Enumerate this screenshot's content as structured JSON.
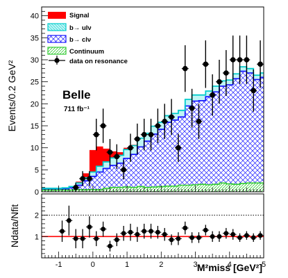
{
  "chart_data": [
    {
      "type": "histogram",
      "panel": "main",
      "ylabel": "Events/0.2 GeV²",
      "xlim": [
        -1.5,
        5
      ],
      "ylim": [
        0,
        42
      ],
      "x_ticks": [
        "-1",
        "0",
        "1",
        "2",
        "3",
        "4",
        "5"
      ],
      "y_ticks": [
        "0",
        "5",
        "10",
        "15",
        "20",
        "25",
        "30",
        "35",
        "40"
      ],
      "annotation": {
        "experiment": "Belle",
        "luminosity": "711 fb⁻¹"
      },
      "bin_edges": [
        -1.5,
        -1.3,
        -1.1,
        -0.9,
        -0.7,
        -0.5,
        -0.3,
        -0.1,
        0.1,
        0.3,
        0.5,
        0.7,
        0.9,
        1.1,
        1.3,
        1.5,
        1.7,
        1.9,
        2.1,
        2.3,
        2.5,
        2.7,
        2.9,
        3.1,
        3.3,
        3.5,
        3.7,
        3.9,
        4.1,
        4.3,
        4.5,
        4.7,
        4.9,
        5.0
      ],
      "stack": [
        {
          "name": "Continuum",
          "color": "#33cc33",
          "values": [
            0.4,
            0.4,
            0.4,
            0.4,
            0.4,
            0.5,
            0.5,
            0.5,
            0.5,
            0.8,
            1.0,
            1.0,
            1.1,
            1.0,
            1.2,
            1.0,
            1.1,
            1.2,
            1.3,
            1.3,
            1.5,
            1.5,
            1.6,
            1.7,
            1.6,
            1.7,
            2.0,
            1.8,
            1.7,
            1.9,
            2.0,
            2.0,
            2.0
          ]
        },
        {
          "name": "b→ clν",
          "color": "#1a1aff",
          "values": [
            0.3,
            0.3,
            0.3,
            0.3,
            0.5,
            1.0,
            2.0,
            3.0,
            4.0,
            4.5,
            5.0,
            5.5,
            6.5,
            7.5,
            9.0,
            10.5,
            12.0,
            13.0,
            14.5,
            15.0,
            15.5,
            18.0,
            19.0,
            19.0,
            20.0,
            21.0,
            22.0,
            22.5,
            24.0,
            25.5,
            25.0,
            23.5,
            24.0
          ]
        },
        {
          "name": "b→ ulν",
          "color": "#00cccc",
          "values": [
            0.1,
            0.1,
            0.1,
            0.2,
            0.3,
            0.5,
            0.7,
            1.0,
            1.3,
            1.5,
            1.7,
            1.8,
            2.0,
            2.0,
            2.0,
            1.8,
            1.8,
            1.6,
            1.5,
            1.5,
            1.5,
            1.5,
            1.4,
            1.3,
            1.3,
            1.3,
            1.2,
            1.1,
            1.1,
            1.0,
            1.0,
            1.0,
            1.0
          ]
        },
        {
          "name": "Signal",
          "color": "#ff0000",
          "values": [
            0,
            0,
            0,
            0,
            0,
            0.3,
            1.0,
            5.0,
            4.5,
            3.0,
            1.5,
            0.7,
            0.4,
            0.2,
            0.1,
            0,
            0,
            0,
            0,
            0,
            0,
            0,
            0,
            0,
            0,
            0,
            0,
            0,
            0,
            0,
            0,
            0,
            0
          ]
        }
      ],
      "data_series": {
        "name": "data on resonance",
        "x": [
          -1.3,
          -1.1,
          -0.9,
          -0.7,
          -0.5,
          -0.3,
          -0.1,
          0.1,
          0.3,
          0.5,
          0.7,
          0.9,
          1.1,
          1.3,
          1.5,
          1.7,
          1.9,
          2.1,
          2.3,
          2.5,
          2.7,
          2.9,
          3.1,
          3.3,
          3.5,
          3.7,
          3.9,
          4.1,
          4.3,
          4.5,
          4.7,
          4.9
        ],
        "y": [
          0,
          0,
          0,
          0,
          1,
          3,
          3,
          13,
          15,
          9,
          8,
          5,
          10,
          12,
          13,
          13,
          15,
          16,
          17,
          10,
          28,
          19,
          16,
          29,
          22,
          25,
          27,
          30,
          30,
          30,
          23,
          29
        ],
        "err": [
          0,
          0,
          0,
          0,
          1,
          1.7,
          1.7,
          3.6,
          3.9,
          3,
          2.8,
          2.2,
          3.2,
          3.5,
          3.6,
          3.6,
          3.9,
          4,
          4.1,
          3.2,
          5.3,
          4.4,
          4,
          5.4,
          4.7,
          5,
          5.2,
          5.5,
          5.5,
          5.5,
          4.8,
          5.4
        ]
      },
      "legend": {
        "placement": "top-left",
        "entries": [
          "Signal",
          "b→ ulν",
          "b→ clν",
          "Continuum",
          "data on resonance"
        ]
      }
    },
    {
      "type": "scatter",
      "panel": "ratio",
      "xlabel": "M²miss [GeV²]",
      "ylabel": "Ndata/Nfit",
      "xlim": [
        -1.5,
        5
      ],
      "ylim": [
        0,
        3
      ],
      "x_ticks": [
        "-1",
        "0",
        "1",
        "2",
        "3",
        "4",
        "5"
      ],
      "y_ticks": [
        "0",
        "1",
        "2",
        "3"
      ],
      "reference_lines": [
        {
          "y": 1,
          "style": "solid",
          "color": "#ff0000"
        },
        {
          "y": 2,
          "style": "dotted",
          "color": "#000000"
        }
      ],
      "x": [
        -0.9,
        -0.7,
        -0.5,
        -0.3,
        -0.1,
        0.1,
        0.3,
        0.5,
        0.7,
        0.9,
        1.1,
        1.3,
        1.5,
        1.7,
        1.9,
        2.1,
        2.3,
        2.5,
        2.7,
        2.9,
        3.1,
        3.3,
        3.5,
        3.7,
        3.9,
        4.1,
        4.3,
        4.5,
        4.7,
        4.9
      ],
      "y": [
        1.25,
        1.75,
        0.9,
        0.9,
        1.45,
        0.9,
        1.35,
        0.55,
        0.85,
        1.15,
        1.2,
        1.1,
        1.25,
        1.25,
        1.2,
        1.1,
        0.85,
        0.9,
        1.4,
        0.95,
        0.95,
        1.3,
        1.0,
        1.0,
        1.15,
        1.1,
        0.95,
        1.05,
        0.95,
        1.05
      ],
      "err": [
        0.5,
        0.7,
        0.45,
        0.45,
        0.5,
        0.35,
        0.35,
        0.25,
        0.3,
        0.35,
        0.4,
        0.35,
        0.35,
        0.35,
        0.3,
        0.3,
        0.25,
        0.3,
        0.3,
        0.25,
        0.25,
        0.25,
        0.25,
        0.25,
        0.25,
        0.25,
        0.2,
        0.2,
        0.2,
        0.2
      ]
    }
  ]
}
